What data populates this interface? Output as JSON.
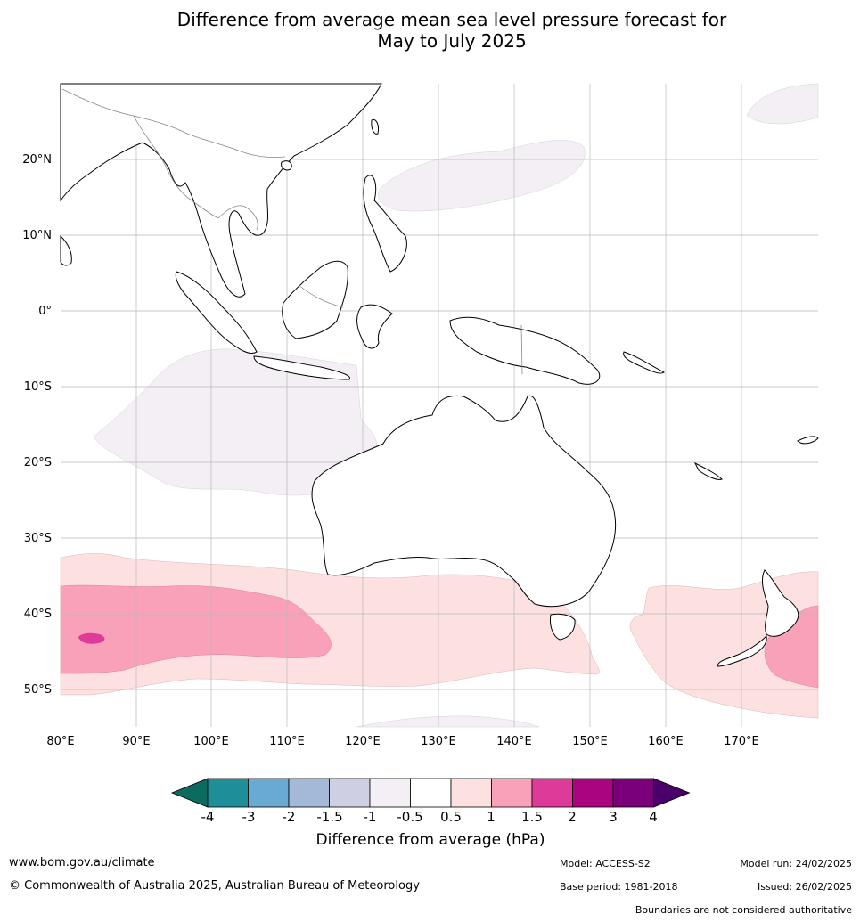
{
  "title": {
    "line1": "Difference from average mean sea level pressure forecast for",
    "line2": "May to July 2025"
  },
  "map": {
    "lon_ticks": [
      "80°E",
      "90°E",
      "100°E",
      "110°E",
      "120°E",
      "130°E",
      "140°E",
      "150°E",
      "160°E",
      "170°E"
    ],
    "lat_ticks": [
      "20°N",
      "10°N",
      "0°",
      "10°S",
      "20°S",
      "30°S",
      "40°S",
      "50°S"
    ],
    "lon_range": [
      80,
      180
    ],
    "lat_range": [
      -55,
      30
    ]
  },
  "colorbar": {
    "label": "Difference from average (hPa)",
    "ticks": [
      "-4",
      "-3",
      "-2",
      "-1.5",
      "-1",
      "-0.5",
      "0.5",
      "1",
      "1.5",
      "2",
      "3",
      "4"
    ],
    "colors": [
      "#0a6b5e",
      "#1e8f98",
      "#68aad2",
      "#a4b8d8",
      "#cfcfe4",
      "#f3eff5",
      "#ffffff",
      "#fde0e0",
      "#f8a1b9",
      "#de3a9a",
      "#ab0480",
      "#79007a",
      "#4a006a"
    ]
  },
  "footer": {
    "website": "www.bom.gov.au/climate",
    "copyright": "© Commonwealth of Australia 2025, Australian Bureau of Meteorology",
    "model": "Model: ACCESS-S2",
    "base_period": "Base period: 1981-2018",
    "model_run": "Model run: 24/02/2025",
    "issued": "Issued: 26/02/2025",
    "disclaimer": "Boundaries are not considered authoritative"
  }
}
